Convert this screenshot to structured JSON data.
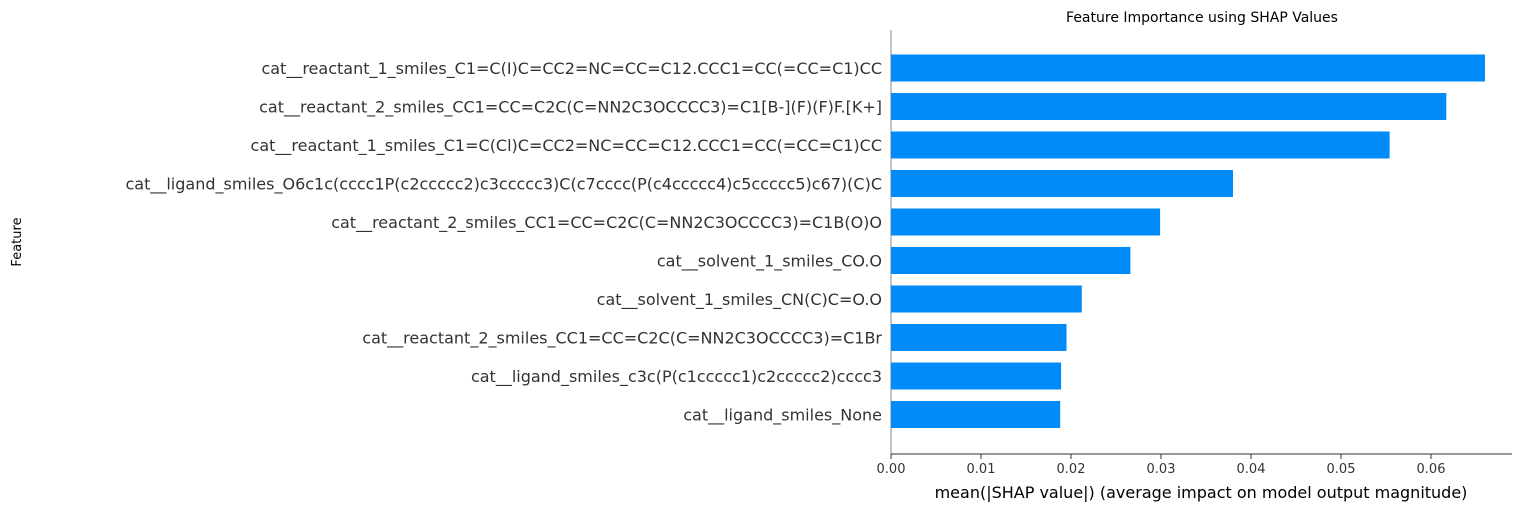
{
  "chart_data": {
    "type": "bar",
    "orientation": "horizontal",
    "title": "Feature Importance using SHAP Values",
    "xlabel": "mean(|SHAP value|) (average impact on model output magnitude)",
    "ylabel": "Feature",
    "categories": [
      "cat__reactant_1_smiles_C1=C(I)C=CC2=NC=CC=C12.CCC1=CC(=CC=C1)CC",
      "cat__reactant_2_smiles_CC1=CC=C2C(C=NN2C3OCCCC3)=C1[B-](F)(F)F.[K+]",
      "cat__reactant_1_smiles_C1=C(Cl)C=CC2=NC=CC=C12.CCC1=CC(=CC=C1)CC",
      "cat__ligand_smiles_O6c1c(cccc1P(c2ccccc2)c3ccccc3)C(c7cccc(P(c4ccccc4)c5ccccc5)c67)(C)C",
      "cat__reactant_2_smiles_CC1=CC=C2C(C=NN2C3OCCCC3)=C1B(O)O",
      "cat__solvent_1_smiles_CO.O",
      "cat__solvent_1_smiles_CN(C)C=O.O",
      "cat__reactant_2_smiles_CC1=CC=C2C(C=NN2C3OCCCC3)=C1Br",
      "cat__ligand_smiles_c3c(P(c1ccccc1)c2ccccc2)cccc3",
      "cat__ligand_smiles_None"
    ],
    "values": [
      0.066,
      0.0617,
      0.0554,
      0.038,
      0.0299,
      0.0266,
      0.0212,
      0.0195,
      0.0189,
      0.0188
    ],
    "xlim": [
      0.0,
      0.069
    ],
    "xticks": [
      "0.00",
      "0.01",
      "0.02",
      "0.03",
      "0.04",
      "0.05",
      "0.06"
    ],
    "bar_color": "#008bfb",
    "grid": false
  }
}
